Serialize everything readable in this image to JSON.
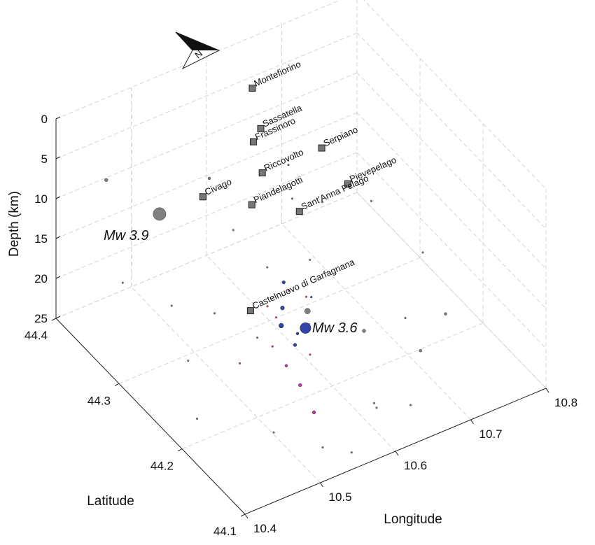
{
  "chart_data": {
    "type": "scatter3d",
    "xlabel": "Longitude",
    "ylabel": "Latitude",
    "zlabel": "Depth (km)",
    "xlim": [
      10.4,
      10.8
    ],
    "xticks": [
      10.4,
      10.5,
      10.6,
      10.7,
      10.8
    ],
    "ylim": [
      44.1,
      44.4
    ],
    "yticks": [
      44.1,
      44.2,
      44.3,
      44.4
    ],
    "zlim": [
      0,
      25
    ],
    "zticks": [
      0,
      5,
      10,
      15,
      20,
      25
    ],
    "zreversed": true,
    "grid": true,
    "north_label": "N",
    "annotations": [
      "Mw 3.9",
      "Mw 3.6"
    ],
    "towns": {
      "color": "#777777",
      "names": [
        "Montefiorino",
        "Sassatella",
        "Frassinoro",
        "Serpiano",
        "Riccovolto",
        "Piandelagotti",
        "Civago",
        "Pievepelago",
        "Sant'Anna Pelago",
        "Castelnuovo di Garfagnana"
      ],
      "x": [
        10.614,
        10.585,
        10.566,
        10.625,
        10.546,
        10.507,
        10.468,
        10.617,
        10.546,
        10.409
      ],
      "y": [
        44.344,
        44.296,
        44.285,
        44.247,
        44.247,
        44.217,
        44.248,
        44.196,
        44.188,
        44.102
      ],
      "z": [
        0,
        0,
        0,
        0,
        0,
        0,
        0,
        0,
        0,
        0
      ]
    },
    "series": [
      {
        "color": "#808080",
        "x": [
          10.484,
          10.45,
          10.52,
          10.6,
          10.62,
          10.66,
          10.55,
          10.6,
          10.65,
          10.7,
          10.62,
          10.58,
          10.47,
          10.43,
          10.5,
          10.53,
          10.57,
          10.45,
          10.48,
          10.52,
          10.55,
          10.6,
          10.68,
          10.72,
          10.42,
          10.46,
          10.51,
          10.58
        ],
        "y": [
          44.336,
          44.38,
          44.3,
          44.27,
          44.24,
          44.21,
          44.18,
          44.15,
          44.12,
          44.14,
          44.1,
          44.11,
          44.3,
          44.33,
          44.2,
          44.22,
          44.2,
          44.25,
          44.15,
          44.12,
          44.11,
          44.13,
          44.18,
          44.2,
          44.2,
          44.22,
          44.25,
          44.24
        ],
        "z": [
          10,
          8,
          4,
          3,
          6,
          5,
          12,
          14,
          16,
          15,
          20,
          19,
          18,
          16,
          15,
          9,
          8,
          20,
          22,
          23,
          24,
          22,
          18,
          13,
          22,
          12,
          6,
          4
        ],
        "size": [
          3.9,
          2.0,
          1.8,
          1.2,
          1.5,
          1.0,
          2.6,
          2.0,
          1.8,
          1.8,
          1.0,
          1.2,
          1.0,
          1.0,
          0.8,
          0.8,
          0.8,
          0.8,
          0.8,
          0.8,
          1.5,
          0.8,
          0.8,
          0.8,
          0.8,
          0.8,
          1.0,
          0.8
        ]
      },
      {
        "color": "#ff4040",
        "x": [
          10.5,
          10.52,
          10.48,
          10.46,
          10.54
        ],
        "y": [
          44.17,
          44.14,
          44.16,
          44.18,
          44.17
        ],
        "z": [
          10,
          13,
          7,
          15,
          9
        ],
        "size": [
          0.5,
          0.5,
          0.5,
          0.5,
          0.5
        ]
      },
      {
        "color": "#cc33aa",
        "x": [
          10.49,
          10.5,
          10.48,
          10.51,
          10.47,
          10.5
        ],
        "y": [
          44.12,
          44.11,
          44.13,
          44.13,
          44.14,
          44.15
        ],
        "z": [
          14,
          17,
          12,
          8,
          10,
          5
        ],
        "size": [
          2.0,
          2.0,
          1.8,
          1.5,
          1.5,
          1.5
        ]
      },
      {
        "color": "#3344aa",
        "x": [
          10.518,
          10.5,
          10.51,
          10.49,
          10.52,
          10.5,
          10.53
        ],
        "y": [
          44.145,
          44.16,
          44.17,
          44.15,
          44.16,
          44.14,
          44.15
        ],
        "z": [
          10,
          8,
          6,
          9,
          12,
          11,
          7
        ],
        "size": [
          3.6,
          2.2,
          2.0,
          2.4,
          1.8,
          2.0,
          1.5
        ]
      }
    ]
  }
}
